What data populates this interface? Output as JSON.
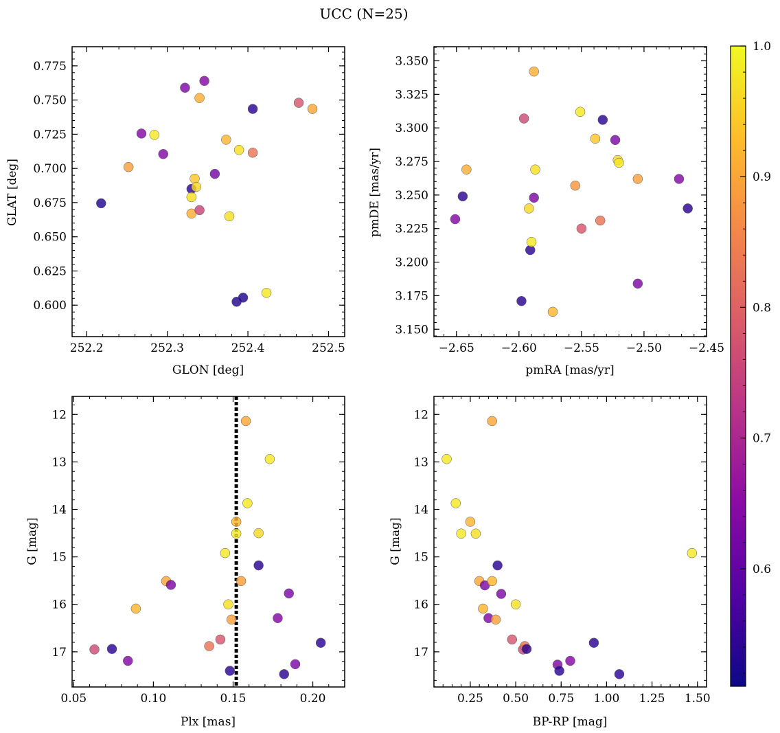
{
  "title": "UCC (N=25)",
  "colorbar": {
    "range": [
      0.51,
      1.0
    ],
    "ticks": [
      0.6,
      0.7,
      0.8,
      0.9,
      1.0
    ],
    "tick_labels": [
      "0.6",
      "0.7",
      "0.8",
      "0.9",
      "1.0"
    ],
    "colormap": [
      "#0d0887",
      "#5302a3",
      "#8b0aa5",
      "#b83289",
      "#db5c68",
      "#f48849",
      "#febd2a",
      "#f0f921"
    ]
  },
  "chart_data": [
    {
      "type": "scatter",
      "name": "glon-glat",
      "xlabel": "GLON [deg]",
      "ylabel": "GLAT [deg]",
      "xlim": [
        252.182,
        252.52
      ],
      "ylim": [
        0.577,
        0.789
      ],
      "xticks": [
        252.2,
        252.3,
        252.4,
        252.5
      ],
      "xtick_labels": [
        "252.2",
        "252.3",
        "252.4",
        "252.5"
      ],
      "yticks": [
        0.6,
        0.625,
        0.65,
        0.675,
        0.7,
        0.725,
        0.75,
        0.775
      ],
      "ytick_labels": [
        "0.600",
        "0.625",
        "0.650",
        "0.675",
        "0.700",
        "0.725",
        "0.750",
        "0.775"
      ],
      "invert_y": false,
      "points": [
        {
          "x": 252.218,
          "y": 0.6745,
          "c": 0.53
        },
        {
          "x": 252.252,
          "y": 0.701,
          "c": 0.89
        },
        {
          "x": 252.268,
          "y": 0.7255,
          "c": 0.64
        },
        {
          "x": 252.284,
          "y": 0.7245,
          "c": 0.98
        },
        {
          "x": 252.295,
          "y": 0.7105,
          "c": 0.64
        },
        {
          "x": 252.322,
          "y": 0.759,
          "c": 0.63
        },
        {
          "x": 252.33,
          "y": 0.685,
          "c": 0.54
        },
        {
          "x": 252.33,
          "y": 0.679,
          "c": 0.97
        },
        {
          "x": 252.33,
          "y": 0.667,
          "c": 0.91
        },
        {
          "x": 252.334,
          "y": 0.6925,
          "c": 0.94
        },
        {
          "x": 252.336,
          "y": 0.6865,
          "c": 0.96
        },
        {
          "x": 252.34,
          "y": 0.7515,
          "c": 0.91
        },
        {
          "x": 252.34,
          "y": 0.6695,
          "c": 0.75
        },
        {
          "x": 252.346,
          "y": 0.764,
          "c": 0.64
        },
        {
          "x": 252.359,
          "y": 0.696,
          "c": 0.62
        },
        {
          "x": 252.373,
          "y": 0.721,
          "c": 0.92
        },
        {
          "x": 252.377,
          "y": 0.665,
          "c": 0.97
        },
        {
          "x": 252.386,
          "y": 0.6025,
          "c": 0.53
        },
        {
          "x": 252.389,
          "y": 0.7135,
          "c": 0.97
        },
        {
          "x": 252.394,
          "y": 0.6055,
          "c": 0.53
        },
        {
          "x": 252.406,
          "y": 0.7435,
          "c": 0.54
        },
        {
          "x": 252.406,
          "y": 0.7115,
          "c": 0.83
        },
        {
          "x": 252.423,
          "y": 0.609,
          "c": 0.98
        },
        {
          "x": 252.463,
          "y": 0.748,
          "c": 0.78
        },
        {
          "x": 252.48,
          "y": 0.7435,
          "c": 0.9
        }
      ]
    },
    {
      "type": "scatter",
      "name": "pmra-pmde",
      "xlabel": "pmRA [mas/yr]",
      "ylabel": "pmDE [mas/yr]",
      "xlim": [
        -2.668,
        -2.45
      ],
      "ylim": [
        3.1445,
        3.3605
      ],
      "xticks": [
        -2.65,
        -2.6,
        -2.55,
        -2.5,
        -2.45
      ],
      "xtick_labels": [
        "−2.65",
        "−2.60",
        "−2.55",
        "−2.50",
        "−2.45"
      ],
      "yticks": [
        3.15,
        3.175,
        3.2,
        3.225,
        3.25,
        3.275,
        3.3,
        3.325,
        3.35
      ],
      "ytick_labels": [
        "3.150",
        "3.175",
        "3.200",
        "3.225",
        "3.250",
        "3.275",
        "3.300",
        "3.325",
        "3.350"
      ],
      "invert_y": false,
      "points": [
        {
          "x": -2.651,
          "y": 3.232,
          "c": 0.64
        },
        {
          "x": -2.645,
          "y": 3.249,
          "c": 0.54
        },
        {
          "x": -2.642,
          "y": 3.269,
          "c": 0.91
        },
        {
          "x": -2.598,
          "y": 3.171,
          "c": 0.54
        },
        {
          "x": -2.596,
          "y": 3.307,
          "c": 0.76
        },
        {
          "x": -2.592,
          "y": 3.24,
          "c": 0.96
        },
        {
          "x": -2.591,
          "y": 3.209,
          "c": 0.54
        },
        {
          "x": -2.59,
          "y": 3.215,
          "c": 0.98
        },
        {
          "x": -2.588,
          "y": 3.342,
          "c": 0.91
        },
        {
          "x": -2.588,
          "y": 3.248,
          "c": 0.63
        },
        {
          "x": -2.587,
          "y": 3.269,
          "c": 0.97
        },
        {
          "x": -2.573,
          "y": 3.163,
          "c": 0.92
        },
        {
          "x": -2.555,
          "y": 3.257,
          "c": 0.88
        },
        {
          "x": -2.551,
          "y": 3.312,
          "c": 0.98
        },
        {
          "x": -2.55,
          "y": 3.225,
          "c": 0.78
        },
        {
          "x": -2.539,
          "y": 3.292,
          "c": 0.94
        },
        {
          "x": -2.535,
          "y": 3.231,
          "c": 0.83
        },
        {
          "x": -2.533,
          "y": 3.306,
          "c": 0.54
        },
        {
          "x": -2.523,
          "y": 3.291,
          "c": 0.63
        },
        {
          "x": -2.521,
          "y": 3.276,
          "c": 0.96
        },
        {
          "x": -2.52,
          "y": 3.274,
          "c": 0.98
        },
        {
          "x": -2.505,
          "y": 3.262,
          "c": 0.89
        },
        {
          "x": -2.505,
          "y": 3.184,
          "c": 0.63
        },
        {
          "x": -2.472,
          "y": 3.262,
          "c": 0.64
        },
        {
          "x": -2.465,
          "y": 3.24,
          "c": 0.54
        }
      ]
    },
    {
      "type": "scatter",
      "name": "plx-g",
      "xlabel": "Plx [mas]",
      "ylabel": "G [mag]",
      "xlim": [
        0.049,
        0.22
      ],
      "ylim": [
        17.74,
        11.62
      ],
      "xticks": [
        0.05,
        0.1,
        0.15,
        0.2
      ],
      "xtick_labels": [
        "0.05",
        "0.10",
        "0.15",
        "0.20"
      ],
      "yticks": [
        12,
        13,
        14,
        15,
        16,
        17
      ],
      "ytick_labels": [
        "12",
        "13",
        "14",
        "15",
        "16",
        "17"
      ],
      "invert_y": true,
      "vline": 0.152,
      "points": [
        {
          "x": 0.063,
          "y": 16.95,
          "c": 0.76
        },
        {
          "x": 0.074,
          "y": 16.94,
          "c": 0.54
        },
        {
          "x": 0.084,
          "y": 17.19,
          "c": 0.64
        },
        {
          "x": 0.089,
          "y": 16.09,
          "c": 0.92
        },
        {
          "x": 0.108,
          "y": 15.51,
          "c": 0.9
        },
        {
          "x": 0.111,
          "y": 15.59,
          "c": 0.63
        },
        {
          "x": 0.135,
          "y": 16.88,
          "c": 0.83
        },
        {
          "x": 0.142,
          "y": 16.74,
          "c": 0.78
        },
        {
          "x": 0.145,
          "y": 14.92,
          "c": 0.98
        },
        {
          "x": 0.147,
          "y": 16.0,
          "c": 0.97
        },
        {
          "x": 0.148,
          "y": 17.4,
          "c": 0.54
        },
        {
          "x": 0.149,
          "y": 16.32,
          "c": 0.89
        },
        {
          "x": 0.152,
          "y": 14.26,
          "c": 0.92
        },
        {
          "x": 0.152,
          "y": 14.51,
          "c": 0.98
        },
        {
          "x": 0.155,
          "y": 15.51,
          "c": 0.89
        },
        {
          "x": 0.158,
          "y": 12.14,
          "c": 0.9
        },
        {
          "x": 0.159,
          "y": 13.87,
          "c": 0.98
        },
        {
          "x": 0.166,
          "y": 15.18,
          "c": 0.54
        },
        {
          "x": 0.166,
          "y": 14.5,
          "c": 0.96
        },
        {
          "x": 0.173,
          "y": 12.94,
          "c": 0.98
        },
        {
          "x": 0.178,
          "y": 16.29,
          "c": 0.64
        },
        {
          "x": 0.182,
          "y": 17.47,
          "c": 0.54
        },
        {
          "x": 0.185,
          "y": 15.77,
          "c": 0.63
        },
        {
          "x": 0.189,
          "y": 17.26,
          "c": 0.63
        },
        {
          "x": 0.205,
          "y": 16.81,
          "c": 0.54
        }
      ]
    },
    {
      "type": "scatter",
      "name": "bprp-g",
      "xlabel": "BP-RP [mag]",
      "ylabel": "G [mag]",
      "xlim": [
        0.05,
        1.55
      ],
      "ylim": [
        17.74,
        11.62
      ],
      "xticks": [
        0.25,
        0.5,
        0.75,
        1.0,
        1.25,
        1.5
      ],
      "xtick_labels": [
        "0.25",
        "0.50",
        "0.75",
        "1.00",
        "1.25",
        "1.50"
      ],
      "yticks": [
        12,
        13,
        14,
        15,
        16,
        17
      ],
      "ytick_labels": [
        "12",
        "13",
        "14",
        "15",
        "16",
        "17"
      ],
      "invert_y": true,
      "points": [
        {
          "x": 0.12,
          "y": 12.94,
          "c": 0.98
        },
        {
          "x": 0.17,
          "y": 13.87,
          "c": 0.98
        },
        {
          "x": 0.2,
          "y": 14.51,
          "c": 0.98
        },
        {
          "x": 0.25,
          "y": 14.26,
          "c": 0.92
        },
        {
          "x": 0.28,
          "y": 14.51,
          "c": 0.97
        },
        {
          "x": 0.3,
          "y": 15.51,
          "c": 0.9
        },
        {
          "x": 0.32,
          "y": 16.09,
          "c": 0.92
        },
        {
          "x": 0.33,
          "y": 15.6,
          "c": 0.63
        },
        {
          "x": 0.35,
          "y": 16.29,
          "c": 0.64
        },
        {
          "x": 0.37,
          "y": 12.14,
          "c": 0.9
        },
        {
          "x": 0.37,
          "y": 15.51,
          "c": 0.92
        },
        {
          "x": 0.39,
          "y": 16.32,
          "c": 0.89
        },
        {
          "x": 0.4,
          "y": 15.18,
          "c": 0.54
        },
        {
          "x": 0.42,
          "y": 15.78,
          "c": 0.63
        },
        {
          "x": 0.48,
          "y": 16.74,
          "c": 0.78
        },
        {
          "x": 0.5,
          "y": 16.0,
          "c": 0.97
        },
        {
          "x": 0.54,
          "y": 16.95,
          "c": 0.76
        },
        {
          "x": 0.55,
          "y": 16.88,
          "c": 0.83
        },
        {
          "x": 0.56,
          "y": 16.94,
          "c": 0.54
        },
        {
          "x": 0.73,
          "y": 17.27,
          "c": 0.63
        },
        {
          "x": 0.74,
          "y": 17.4,
          "c": 0.54
        },
        {
          "x": 0.8,
          "y": 17.19,
          "c": 0.64
        },
        {
          "x": 0.93,
          "y": 16.81,
          "c": 0.54
        },
        {
          "x": 1.07,
          "y": 17.47,
          "c": 0.54
        },
        {
          "x": 1.47,
          "y": 14.92,
          "c": 0.98
        }
      ]
    }
  ]
}
